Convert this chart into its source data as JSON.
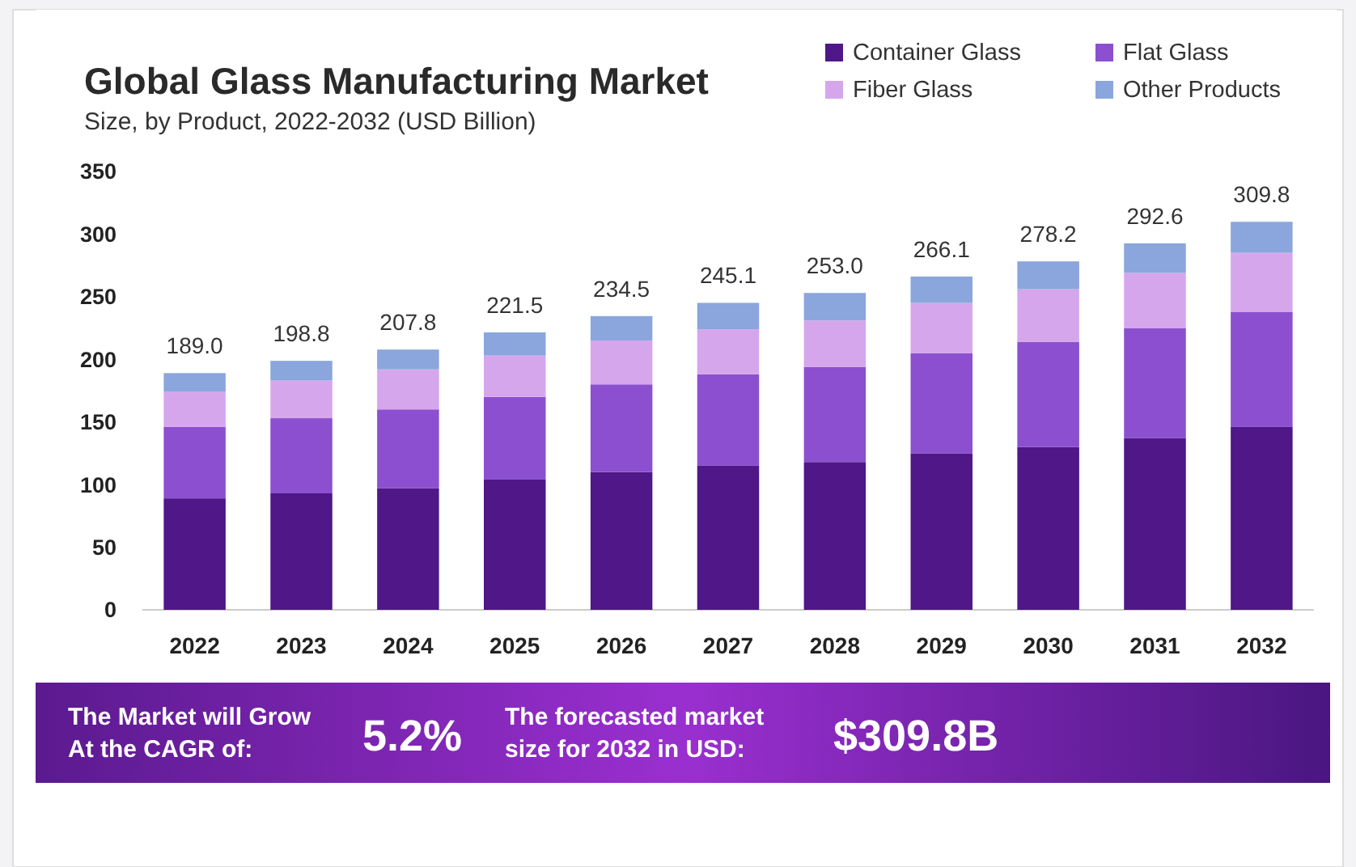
{
  "chart_data": {
    "type": "bar",
    "title": "Global Glass Manufacturing Market",
    "subtitle": "Size, by Product, 2022-2032 (USD Billion)",
    "categories": [
      "2022",
      "2023",
      "2024",
      "2025",
      "2026",
      "2027",
      "2028",
      "2029",
      "2030",
      "2031",
      "2032"
    ],
    "stacked": true,
    "legend": "top right",
    "grid": false,
    "ylim": [
      0,
      350
    ],
    "yticks": [
      0,
      50,
      100,
      150,
      200,
      250,
      300,
      350
    ],
    "series": [
      {
        "name": "Container Glass",
        "color": "#4f1787",
        "values": [
          89,
          93,
          97,
          104,
          110,
          115,
          118,
          125,
          130,
          137,
          146
        ]
      },
      {
        "name": "Flat Glass",
        "color": "#8b4fcf",
        "values": [
          57,
          60,
          63,
          66,
          70,
          73,
          76,
          80,
          84,
          88,
          92
        ]
      },
      {
        "name": "Fiber Glass",
        "color": "#d6a6ec",
        "values": [
          28,
          30,
          32,
          33,
          35,
          36,
          37,
          40,
          42,
          44,
          47
        ]
      },
      {
        "name": "Other Products",
        "color": "#8aa6dc",
        "values": [
          15.0,
          15.8,
          15.8,
          18.5,
          19.5,
          21.1,
          22.0,
          21.1,
          22.2,
          23.6,
          24.8
        ]
      }
    ],
    "totals": [
      "189.0",
      "198.8",
      "207.8",
      "221.5",
      "234.5",
      "245.1",
      "253.0",
      "266.1",
      "278.2",
      "292.6",
      "309.8"
    ],
    "annotations": [
      "The Market will Grow At the CAGR of:",
      "5.2%",
      "The forecasted market size for 2032 in USD:",
      "$309.8B"
    ]
  }
}
